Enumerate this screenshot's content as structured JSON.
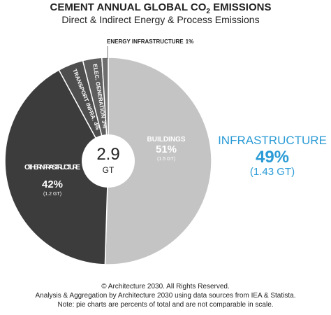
{
  "chart_data": {
    "type": "pie",
    "title": "CEMENT ANNUAL GLOBAL CO",
    "title_subscript": "2",
    "title_end": " EMISSIONS",
    "subtitle": "Direct & Indirect Energy & Process Emissions",
    "slices": [
      {
        "name": "BUILDINGS",
        "value": 51,
        "value_label": "51%",
        "sub": "(1.5 GT)",
        "color": "#c4c4c4"
      },
      {
        "name": "OTHER INFRASTRUCTURE",
        "value": 42,
        "value_label": "42%",
        "sub": "(1.2 GT)",
        "color": "#3c3c3c"
      },
      {
        "name": "TRANSPORT INFRA.",
        "value": 4,
        "value_label": "4%",
        "color": "#4e4e4e"
      },
      {
        "name": "ELEC. GENERATION",
        "value": 3,
        "value_label": "3%",
        "color": "#5e5e5e"
      },
      {
        "name": "ENERGY INFRASTRUCTURE",
        "value": 1,
        "value_label": "1%",
        "color": "#6e6e6e"
      }
    ],
    "center_value": 2.9,
    "center_unit": "GT",
    "callout": {
      "name": "INFRASTRUCTURE",
      "value": 49,
      "value_label": "49%",
      "sub": "(1.43 GT)",
      "color": "#2a9bd6"
    },
    "footer": [
      "© Architecture 2030. All Rights Reserved.",
      "Analysis & Aggregation by Architecture 2030 using data sources from IEA & Statista.",
      "Note: pie charts are percents of total and are not comparable in scale."
    ]
  }
}
